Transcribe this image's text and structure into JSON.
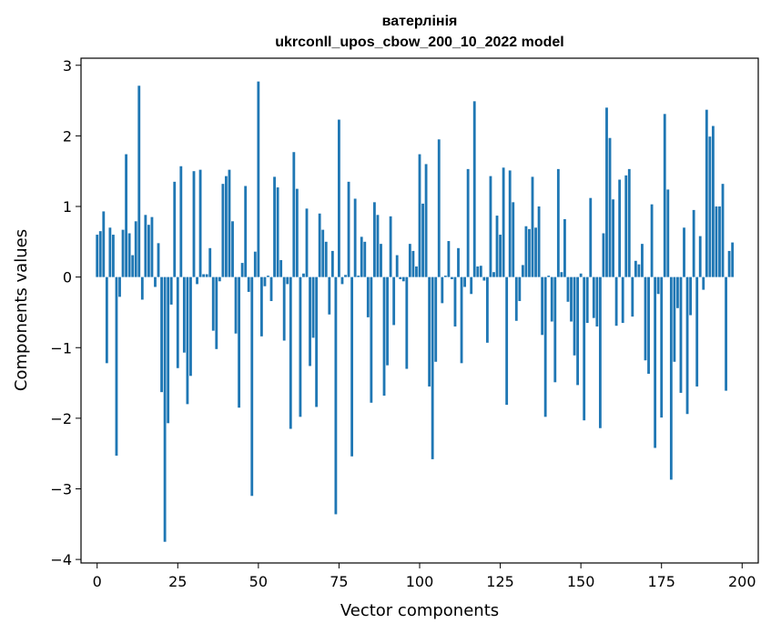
{
  "chart_data": {
    "type": "bar",
    "title_line1": "ватерлінія",
    "title_line2": "ukrconll_upos_cbow_200_10_2022 model",
    "xlabel": "Vector components",
    "ylabel": "Components values",
    "xlim": [
      -5,
      205
    ],
    "ylim": [
      -4.05,
      3.1
    ],
    "xticks": [
      0,
      25,
      50,
      75,
      100,
      125,
      150,
      175,
      200
    ],
    "xtick_labels": [
      "0",
      "25",
      "50",
      "75",
      "100",
      "125",
      "150",
      "175",
      "200"
    ],
    "yticks": [
      -4,
      -3,
      -2,
      -1,
      0,
      1,
      2,
      3
    ],
    "ytick_labels": [
      "−4",
      "−3",
      "−2",
      "−1",
      "0",
      "1",
      "2",
      "3"
    ],
    "grid": false,
    "bar_color": "#1f77b4",
    "values": [
      0.6,
      0.65,
      0.93,
      -1.22,
      0.7,
      0.6,
      -2.53,
      -0.28,
      0.67,
      1.74,
      0.62,
      0.31,
      0.79,
      2.71,
      -0.32,
      0.88,
      0.74,
      0.85,
      -0.14,
      0.48,
      -1.63,
      -3.75,
      -2.07,
      -0.39,
      1.35,
      -1.29,
      1.57,
      -1.07,
      -1.8,
      -1.4,
      1.5,
      -0.1,
      1.52,
      0.04,
      0.04,
      0.41,
      -0.76,
      -1.02,
      -0.06,
      1.32,
      1.43,
      1.52,
      0.79,
      -0.8,
      -1.85,
      0.2,
      1.29,
      -0.21,
      -3.1,
      0.36,
      2.77,
      -0.84,
      -0.13,
      0.02,
      -0.34,
      1.42,
      1.27,
      0.24,
      -0.9,
      -0.1,
      -2.15,
      1.77,
      1.25,
      -1.98,
      0.05,
      0.97,
      -1.26,
      -0.86,
      -1.84,
      0.9,
      0.67,
      0.5,
      -0.53,
      0.37,
      -3.36,
      2.23,
      -0.1,
      0.03,
      1.35,
      -2.54,
      1.11,
      0.02,
      0.57,
      0.5,
      -0.57,
      -1.78,
      1.06,
      0.88,
      0.47,
      -1.68,
      -1.25,
      0.86,
      -0.68,
      0.31,
      -0.03,
      -0.06,
      -1.3,
      0.47,
      0.37,
      0.15,
      1.74,
      1.04,
      1.6,
      -1.55,
      -2.58,
      -1.2,
      1.95,
      -0.37,
      0.02,
      0.51,
      -0.03,
      -0.7,
      0.41,
      -1.22,
      -0.14,
      1.53,
      -0.24,
      2.49,
      0.15,
      0.16,
      -0.05,
      -0.93,
      1.43,
      0.07,
      0.87,
      0.6,
      1.55,
      -1.81,
      1.51,
      1.06,
      -0.62,
      -0.34,
      0.17,
      0.72,
      0.68,
      1.42,
      0.7,
      1.0,
      -0.82,
      -1.98,
      0.02,
      -0.63,
      -1.49,
      1.53,
      0.07,
      0.82,
      -0.35,
      -0.63,
      -1.11,
      -1.53,
      0.05,
      -2.03,
      -0.65,
      1.12,
      -0.58,
      -0.7,
      -2.14,
      0.62,
      2.4,
      1.97,
      1.1,
      -0.69,
      1.38,
      -0.65,
      1.44,
      1.53,
      -0.56,
      0.23,
      0.18,
      0.47,
      -1.18,
      -1.37,
      1.03,
      -2.42,
      -0.24,
      -1.99,
      2.31,
      1.24,
      -2.87,
      -1.2,
      -0.44,
      -1.64,
      0.7,
      -1.94,
      -0.54,
      0.95,
      -1.55,
      0.58,
      -0.18,
      2.37,
      1.99,
      2.14,
      1.0,
      1.0,
      1.32,
      -1.61,
      0.37,
      0.49
    ]
  }
}
